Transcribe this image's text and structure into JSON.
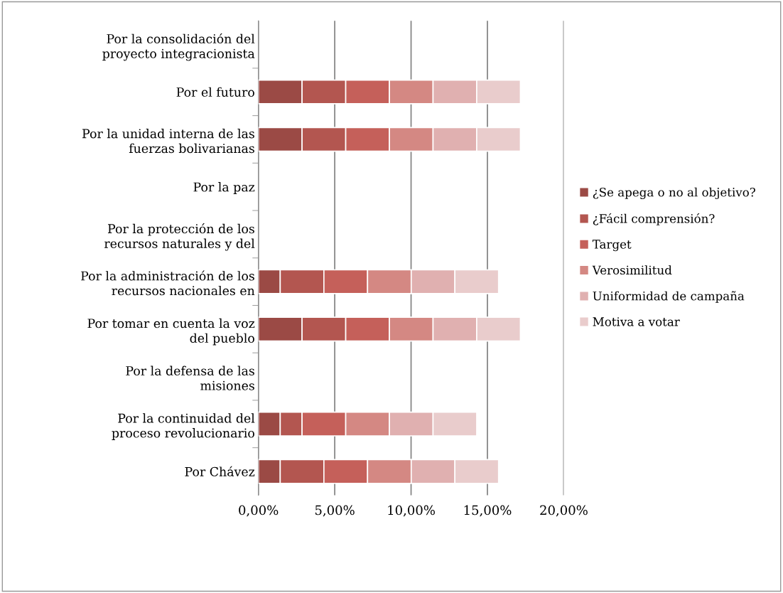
{
  "chart_data": {
    "type": "bar",
    "orientation": "horizontal",
    "stacked": true,
    "categories": [
      "Por la consolidación del\nproyecto integracionista",
      "Por el futuro",
      "Por la unidad interna de las\nfuerzas bolivarianas",
      "Por la paz",
      "Por la protección de los\nrecursos naturales y del",
      "Por la administración de los\nrecursos nacionales en",
      "Por tomar en cuenta la voz\ndel pueblo",
      "Por la defensa de las\nmisiones",
      "Por la continuidad del\nproceso revolucionario",
      "Por Chávez"
    ],
    "series": [
      {
        "name": "¿Se apega o no al objetivo?",
        "color": "#9b4a45",
        "values": [
          null,
          2.86,
          2.86,
          null,
          null,
          1.43,
          2.86,
          null,
          1.43,
          1.43
        ]
      },
      {
        "name": "¿Fácil comprensión?",
        "color": "#b35650",
        "values": [
          null,
          2.86,
          2.86,
          null,
          null,
          2.86,
          2.86,
          null,
          1.43,
          2.86
        ]
      },
      {
        "name": "Target",
        "color": "#c5605a",
        "values": [
          null,
          2.86,
          2.86,
          null,
          null,
          2.86,
          2.86,
          null,
          2.86,
          2.86
        ]
      },
      {
        "name": "Verosimilitud",
        "color": "#d48883",
        "values": [
          null,
          2.86,
          2.86,
          null,
          null,
          2.86,
          2.86,
          null,
          2.86,
          2.86
        ]
      },
      {
        "name": "Uniformidad de campaña",
        "color": "#e0b0b0",
        "values": [
          null,
          2.86,
          2.86,
          null,
          null,
          2.86,
          2.86,
          null,
          2.86,
          2.86
        ]
      },
      {
        "name": "Motiva a votar",
        "color": "#e9cccc",
        "values": [
          null,
          2.86,
          2.86,
          null,
          null,
          2.86,
          2.86,
          null,
          2.86,
          2.86
        ]
      }
    ],
    "xlim": [
      0,
      20
    ],
    "xticks": [
      {
        "value": 0,
        "label": "0,00%"
      },
      {
        "value": 5,
        "label": "5,00%"
      },
      {
        "value": 10,
        "label": "10,00%"
      },
      {
        "value": 15,
        "label": "15,00%"
      },
      {
        "value": 20,
        "label": "20,00%"
      }
    ],
    "grid": "x",
    "legend": "right"
  }
}
